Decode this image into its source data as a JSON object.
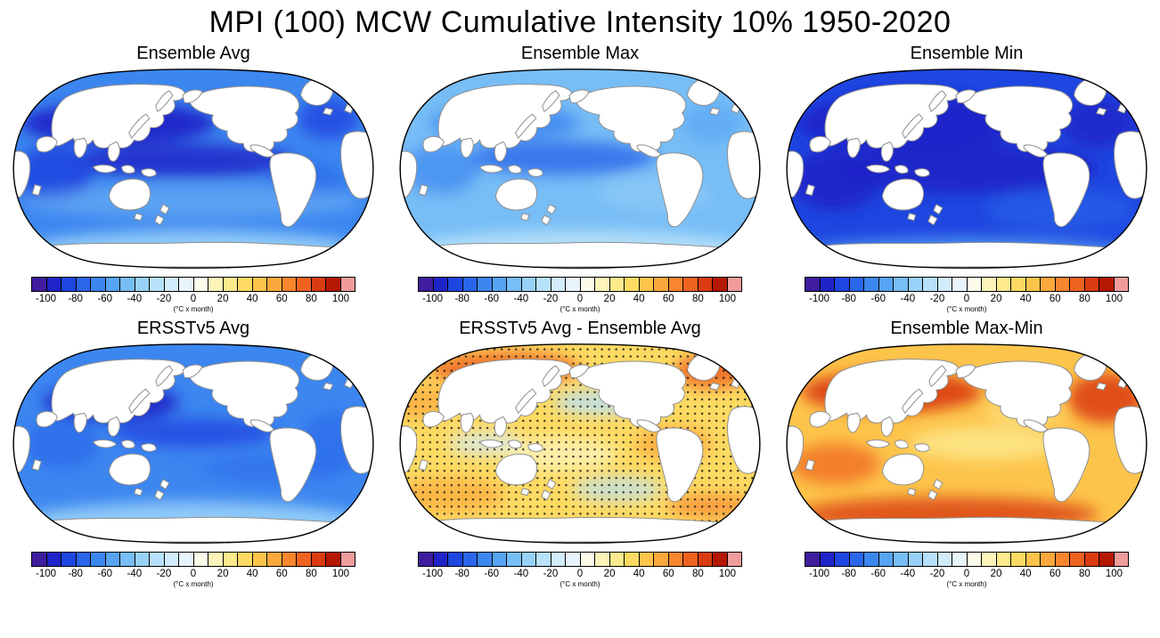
{
  "title": "MPI (100) MCW Cumulative Intensity 10% 1950-2020",
  "panels": [
    {
      "id": "ensemble-avg",
      "title": "Ensemble Avg",
      "scheme": "avg"
    },
    {
      "id": "ensemble-max",
      "title": "Ensemble Max",
      "scheme": "max"
    },
    {
      "id": "ensemble-min",
      "title": "Ensemble Min",
      "scheme": "min"
    },
    {
      "id": "ersstv5-avg",
      "title": "ERSSTv5 Avg",
      "scheme": "obs"
    },
    {
      "id": "ersstv5-minus-ensemble",
      "title": "ERSSTv5 Avg - Ensemble Avg",
      "scheme": "diff"
    },
    {
      "id": "ensemble-max-min",
      "title": "Ensemble Max-Min",
      "scheme": "range"
    }
  ],
  "colorbar": {
    "ticks": [
      "-100",
      "-80",
      "-60",
      "-40",
      "-20",
      "0",
      "20",
      "40",
      "60",
      "80",
      "100"
    ],
    "unit": "(°C x month)",
    "colors": [
      "#3f1d9e",
      "#1f24c8",
      "#1e46e0",
      "#2a66ea",
      "#3c86f0",
      "#57a4f4",
      "#77bdf6",
      "#98d1f8",
      "#b7e1fa",
      "#d2ecfb",
      "#e8f4fb",
      "#fdfbe9",
      "#fdf4b9",
      "#fdea8d",
      "#fdda62",
      "#fdc44b",
      "#fca83c",
      "#f8862e",
      "#ef6320",
      "#da3b10",
      "#b51802",
      "#f09c9c"
    ]
  },
  "chart_data": [
    {
      "type": "heatmap",
      "panel": "Ensemble Avg",
      "projection": "robinson-global-pacific-centered",
      "units": "°C x month",
      "colorbar_range": [
        -110,
        110
      ],
      "tick_values": [
        -100,
        -80,
        -60,
        -40,
        -20,
        0,
        20,
        40,
        60,
        80,
        100
      ],
      "estimated_regional_values": {
        "north_pacific": -85,
        "tropical_pacific": -75,
        "indian_ocean": -65,
        "north_atlantic": -60,
        "southern_ocean": -35,
        "global_ocean_mean": -55
      }
    },
    {
      "type": "heatmap",
      "panel": "Ensemble Max",
      "projection": "robinson-global-pacific-centered",
      "units": "°C x month",
      "colorbar_range": [
        -110,
        110
      ],
      "tick_values": [
        -100,
        -80,
        -60,
        -40,
        -20,
        0,
        20,
        40,
        60,
        80,
        100
      ],
      "estimated_regional_values": {
        "north_pacific": -55,
        "tropical_pacific": -50,
        "indian_ocean": -45,
        "north_atlantic": -40,
        "southern_ocean": -25,
        "global_ocean_mean": -40
      }
    },
    {
      "type": "heatmap",
      "panel": "Ensemble Min",
      "projection": "robinson-global-pacific-centered",
      "units": "°C x month",
      "colorbar_range": [
        -110,
        110
      ],
      "tick_values": [
        -100,
        -80,
        -60,
        -40,
        -20,
        0,
        20,
        40,
        60,
        80,
        100
      ],
      "estimated_regional_values": {
        "north_pacific": -100,
        "tropical_pacific": -90,
        "indian_ocean": -85,
        "north_atlantic": -80,
        "southern_ocean": -50,
        "global_ocean_mean": -75
      }
    },
    {
      "type": "heatmap",
      "panel": "ERSSTv5 Avg",
      "projection": "robinson-global-pacific-centered",
      "units": "°C x month",
      "colorbar_range": [
        -110,
        110
      ],
      "tick_values": [
        -100,
        -80,
        -60,
        -40,
        -20,
        0,
        20,
        40,
        60,
        80,
        100
      ],
      "estimated_regional_values": {
        "north_pacific": -80,
        "tropical_pacific": -70,
        "indian_ocean": -60,
        "north_atlantic": -55,
        "southern_ocean": -35,
        "global_ocean_mean": -50
      }
    },
    {
      "type": "heatmap",
      "panel": "ERSSTv5 Avg - Ensemble Avg",
      "projection": "robinson-global-pacific-centered",
      "units": "°C x month",
      "colorbar_range": [
        -110,
        110
      ],
      "tick_values": [
        -100,
        -80,
        -60,
        -40,
        -20,
        0,
        20,
        40,
        60,
        80,
        100
      ],
      "stippling": "black dots over most ocean areas indicating significance",
      "estimated_regional_values": {
        "north_pacific": 45,
        "north_atlantic": 50,
        "tropical_pacific": 20,
        "southern_ocean": 25,
        "global_ocean_mean": 30
      }
    },
    {
      "type": "heatmap",
      "panel": "Ensemble Max-Min",
      "projection": "robinson-global-pacific-centered",
      "units": "°C x month",
      "colorbar_range": [
        -110,
        110
      ],
      "tick_values": [
        -100,
        -80,
        -60,
        -40,
        -20,
        0,
        20,
        40,
        60,
        80,
        100
      ],
      "estimated_regional_values": {
        "north_pacific": 75,
        "north_atlantic": 80,
        "tropical_pacific": 45,
        "southern_ocean": 70,
        "global_ocean_mean": 60
      }
    }
  ]
}
